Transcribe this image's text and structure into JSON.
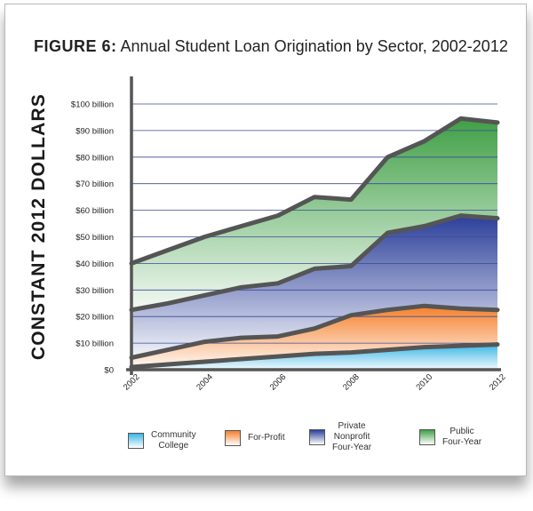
{
  "figure": {
    "title_prefix": "FIGURE 6:",
    "title_rest": " Annual Student Loan Origination by Sector, 2002-2012"
  },
  "colors": {
    "community_college": "#3ab6e6",
    "for_profit": "#f5802a",
    "private_nonprofit": "#2b3f99",
    "public_four_year": "#3f9f45",
    "outline": "#555555",
    "gridline": "#3b4a9a"
  },
  "chart_data": {
    "type": "area",
    "title": "Annual Student Loan Origination by Sector, 2002-2012",
    "ylabel": "CONSTANT 2012 DOLLARS",
    "xlabel": "",
    "stacked": true,
    "x": [
      2002,
      2003,
      2004,
      2005,
      2006,
      2007,
      2008,
      2009,
      2010,
      2011,
      2012
    ],
    "x_ticks": [
      "2002",
      "2004",
      "2006",
      "2008",
      "2010",
      "2012"
    ],
    "y_ticks": [
      "$0",
      "$10 billion",
      "$20 billion",
      "$30 billion",
      "$40 billion",
      "$50 billion",
      "$60 billion",
      "$70 billion",
      "$80 billion",
      "$90 billion",
      "$100 billion"
    ],
    "ylim": [
      0,
      100
    ],
    "grid": true,
    "legend_position": "bottom",
    "series": [
      {
        "name": "Community College",
        "cumulative_values": [
          1,
          2,
          3,
          4,
          5,
          6,
          6.5,
          7.5,
          8.5,
          9,
          9.5
        ]
      },
      {
        "name": "For-Profit",
        "cumulative_values": [
          4.5,
          7.5,
          10.5,
          12,
          12.5,
          15.5,
          20.5,
          22.5,
          24,
          23,
          22.5
        ]
      },
      {
        "name": "Private Nonprofit Four-Year",
        "cumulative_values": [
          22.5,
          25,
          28,
          31,
          32.5,
          38,
          39,
          51.5,
          54,
          58,
          57
        ]
      },
      {
        "name": "Public Four-Year",
        "cumulative_values": [
          40,
          45,
          50,
          54,
          58,
          65,
          64,
          80,
          86,
          94.5,
          93
        ]
      }
    ]
  },
  "legend": [
    {
      "label": "Community\nCollege"
    },
    {
      "label": "For-Profit"
    },
    {
      "label": "Private\nNonprofit\nFour-Year"
    },
    {
      "label": "Public\nFour-Year"
    }
  ]
}
